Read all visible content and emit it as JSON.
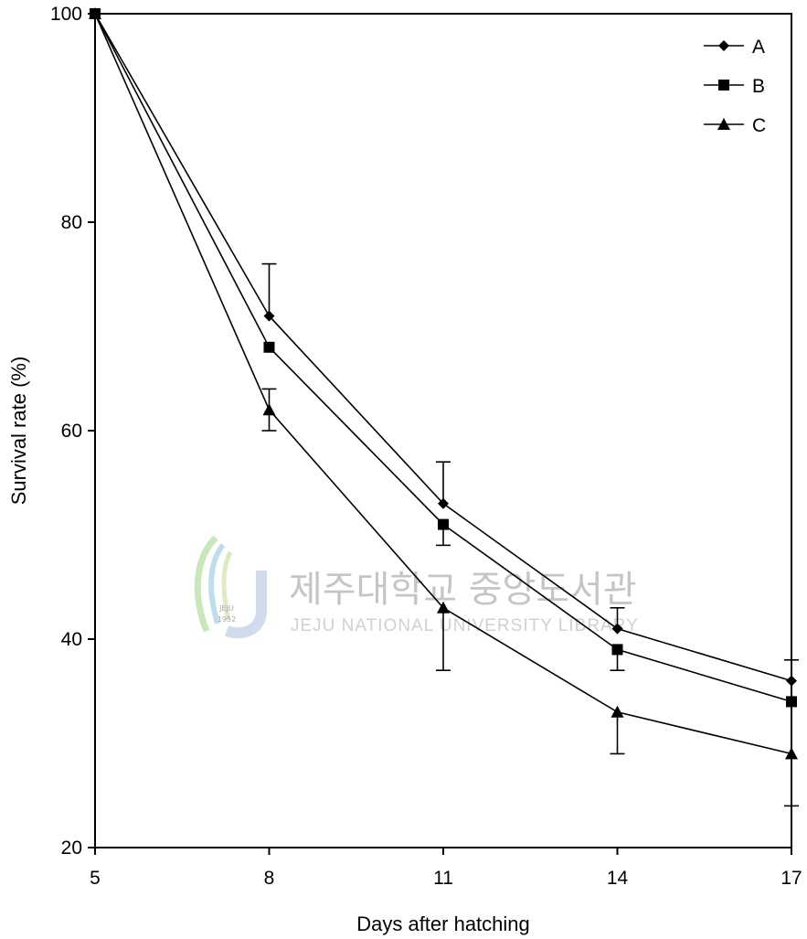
{
  "chart_data": {
    "type": "line",
    "title": "",
    "xlabel": "Days after hatching",
    "ylabel": "Survival rate (%)",
    "x": [
      5,
      8,
      11,
      14,
      17
    ],
    "xticks": [
      "5",
      "8",
      "11",
      "14",
      "17"
    ],
    "yticks": [
      "20",
      "40",
      "60",
      "80",
      "100"
    ],
    "xlim": [
      5,
      17
    ],
    "ylim": [
      20,
      100
    ],
    "grid": false,
    "legend_position": "top-right",
    "series": [
      {
        "name": "A",
        "marker": "diamond",
        "values": [
          100,
          71,
          53,
          41,
          36
        ],
        "error_upper": [
          null,
          76,
          57,
          43,
          38
        ],
        "error_lower": [
          null,
          null,
          null,
          null,
          null
        ]
      },
      {
        "name": "B",
        "marker": "square",
        "values": [
          100,
          68,
          51,
          39,
          34
        ],
        "error_upper": [
          null,
          null,
          null,
          null,
          null
        ],
        "error_lower": [
          null,
          null,
          49,
          37,
          null
        ]
      },
      {
        "name": "C",
        "marker": "triangle",
        "values": [
          100,
          62,
          43,
          33,
          29
        ],
        "error_upper": [
          null,
          64,
          null,
          null,
          null
        ],
        "error_lower": [
          null,
          60,
          37,
          29,
          24
        ]
      }
    ]
  },
  "watermark": {
    "korean": "제주대학교 중앙도서관",
    "english": "JEJU NATIONAL UNIVERSITY LIBRARY",
    "seal_text": "JEJU",
    "seal_year": "1952"
  }
}
